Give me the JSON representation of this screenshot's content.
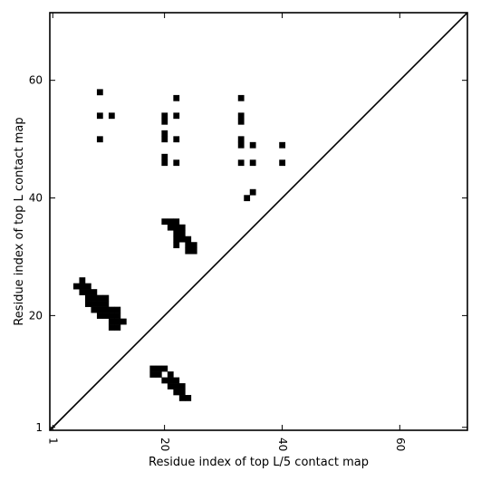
{
  "chart_data": {
    "type": "heatmap",
    "title": "",
    "xlabel": "Residue index of top L/5 contact map",
    "ylabel": "Residue index of top L contact map",
    "xlim": [
      0.5,
      71.5
    ],
    "ylim": [
      0.5,
      71.5
    ],
    "x_ticks": [
      1,
      20,
      40,
      60
    ],
    "x_tick_labels": [
      "1",
      "20",
      "40",
      "60"
    ],
    "y_ticks": [
      1,
      20,
      40,
      60
    ],
    "y_tick_labels": [
      "1",
      "20",
      "40",
      "60"
    ],
    "diagonal": true,
    "grid": false,
    "colors": {
      "cell": "#000000",
      "background": "#ffffff",
      "frame": "#000000"
    },
    "cells": [
      [
        9,
        58
      ],
      [
        22,
        57
      ],
      [
        33,
        57
      ],
      [
        9,
        54
      ],
      [
        11,
        54
      ],
      [
        20,
        54
      ],
      [
        22,
        54
      ],
      [
        33,
        54
      ],
      [
        20,
        53
      ],
      [
        33,
        53
      ],
      [
        20,
        51
      ],
      [
        9,
        50
      ],
      [
        20,
        50
      ],
      [
        22,
        50
      ],
      [
        33,
        50
      ],
      [
        33,
        49
      ],
      [
        35,
        49
      ],
      [
        40,
        49
      ],
      [
        20,
        47
      ],
      [
        20,
        46
      ],
      [
        22,
        46
      ],
      [
        33,
        46
      ],
      [
        35,
        46
      ],
      [
        40,
        46
      ],
      [
        35,
        41
      ],
      [
        34,
        40
      ],
      [
        20,
        36
      ],
      [
        21,
        36
      ],
      [
        22,
        36
      ],
      [
        21,
        35
      ],
      [
        22,
        35
      ],
      [
        23,
        35
      ],
      [
        22,
        34
      ],
      [
        23,
        34
      ],
      [
        22,
        33
      ],
      [
        23,
        33
      ],
      [
        24,
        33
      ],
      [
        22,
        32
      ],
      [
        24,
        32
      ],
      [
        25,
        32
      ],
      [
        24,
        31
      ],
      [
        25,
        31
      ],
      [
        6,
        26
      ],
      [
        5,
        25
      ],
      [
        6,
        25
      ],
      [
        7,
        25
      ],
      [
        6,
        24
      ],
      [
        7,
        24
      ],
      [
        8,
        24
      ],
      [
        7,
        23
      ],
      [
        8,
        23
      ],
      [
        9,
        23
      ],
      [
        10,
        23
      ],
      [
        7,
        22
      ],
      [
        8,
        22
      ],
      [
        9,
        22
      ],
      [
        10,
        22
      ],
      [
        8,
        21
      ],
      [
        9,
        21
      ],
      [
        10,
        21
      ],
      [
        11,
        21
      ],
      [
        12,
        21
      ],
      [
        9,
        20
      ],
      [
        10,
        20
      ],
      [
        11,
        20
      ],
      [
        12,
        20
      ],
      [
        11,
        19
      ],
      [
        12,
        19
      ],
      [
        13,
        19
      ],
      [
        11,
        18
      ],
      [
        12,
        18
      ],
      [
        18,
        11
      ],
      [
        19,
        11
      ],
      [
        20,
        11
      ],
      [
        18,
        10
      ],
      [
        19,
        10
      ],
      [
        21,
        10
      ],
      [
        20,
        9
      ],
      [
        21,
        9
      ],
      [
        22,
        9
      ],
      [
        21,
        8
      ],
      [
        22,
        8
      ],
      [
        23,
        8
      ],
      [
        22,
        7
      ],
      [
        23,
        7
      ],
      [
        23,
        6
      ],
      [
        24,
        6
      ]
    ]
  }
}
